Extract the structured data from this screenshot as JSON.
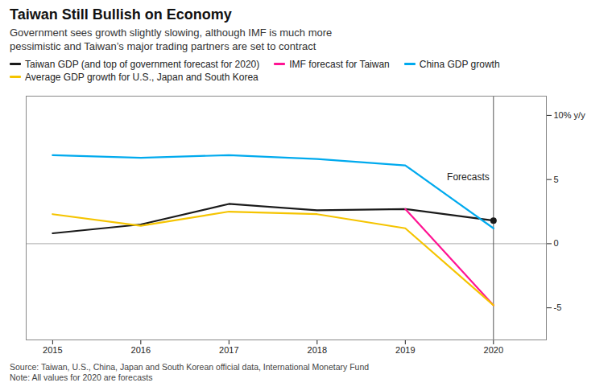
{
  "chart_data": {
    "type": "line",
    "title": "Taiwan Still Bullish on Economy",
    "subtitle": "Government sees growth slightly slowing, although IMF is much more\npessimistic and Taiwan’s major trading partners are set to contract",
    "source": "Source: Taiwan, U.S., China, Japan and South Korean official data, International Monetary Fund\nNote: All values for 2020 are forecasts",
    "series": [
      {
        "name": "Taiwan GDP (and top of government forecast for 2020)",
        "color": "#1a1a1a",
        "x": [
          2015,
          2016,
          2017,
          2018,
          2019,
          2020
        ],
        "values": [
          0.81,
          1.5,
          3.1,
          2.6,
          2.7,
          1.8
        ]
      },
      {
        "name": "IMF forecast for Taiwan",
        "color": "#ff1493",
        "x": [
          2019,
          2020
        ],
        "values": [
          2.7,
          -4.8
        ]
      },
      {
        "name": "China GDP growth",
        "color": "#00aaee",
        "x": [
          2015,
          2016,
          2017,
          2018,
          2019,
          2020
        ],
        "values": [
          6.9,
          6.7,
          6.9,
          6.6,
          6.1,
          1.2
        ]
      },
      {
        "name": "Average GDP growth for U.S., Japan and South Korea",
        "color": "#f5c400",
        "x": [
          2015,
          2016,
          2017,
          2018,
          2019,
          2020
        ],
        "values": [
          2.3,
          1.4,
          2.5,
          2.3,
          1.2,
          -4.8
        ]
      }
    ],
    "points": [
      {
        "x": 2020,
        "y": 1.8,
        "color": "#1a1a1a"
      }
    ],
    "vline_x": 2020,
    "hline_y": 0,
    "annotations": [
      {
        "text": "Forecasts",
        "x": 2020,
        "y": 5.2
      }
    ],
    "xlim": [
      2014.7,
      2020.6
    ],
    "xticks": [
      2015,
      2016,
      2017,
      2018,
      2019,
      2020
    ],
    "ylim": [
      -7.5,
      11.5
    ],
    "yticks": [
      -5,
      0,
      5,
      {
        "value": 10,
        "label": "10% y/y"
      }
    ],
    "grid": false
  }
}
